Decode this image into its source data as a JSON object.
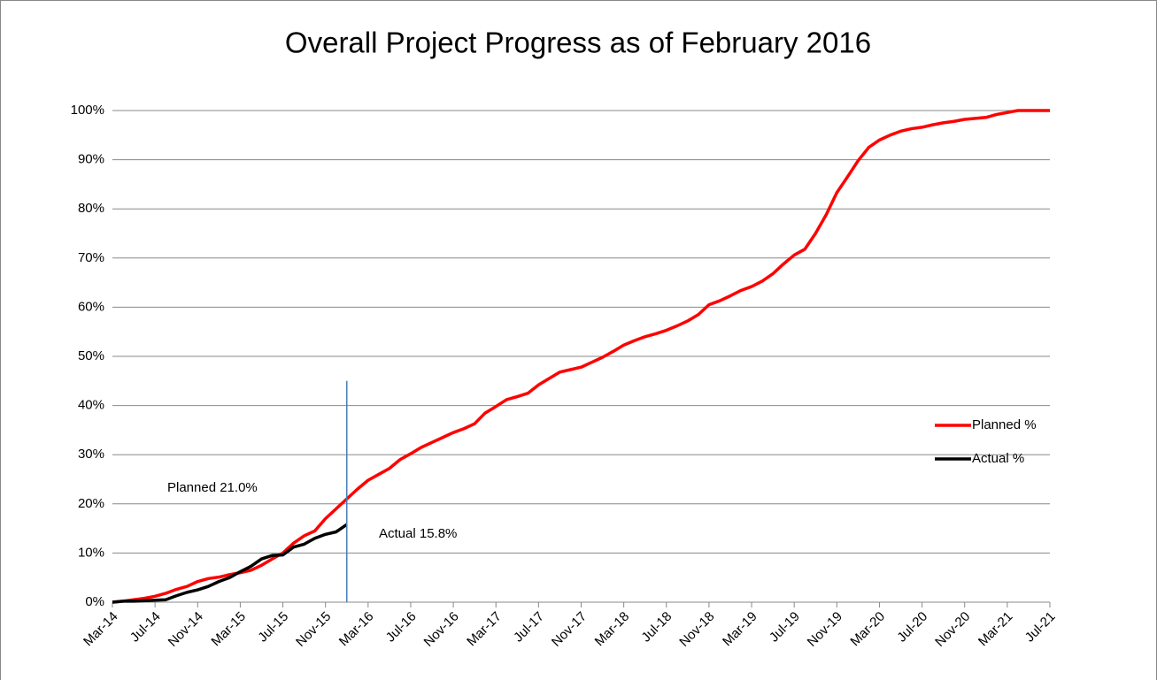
{
  "chart_data": {
    "type": "line",
    "title": "Overall Project Progress as of February 2016",
    "categories": [
      "Mar-14",
      null,
      null,
      null,
      "Jul-14",
      null,
      null,
      null,
      "Nov-14",
      null,
      null,
      null,
      "Mar-15",
      null,
      null,
      null,
      "Jul-15",
      null,
      null,
      null,
      "Nov-15",
      null,
      null,
      null,
      "Mar-16",
      null,
      null,
      null,
      "Jul-16",
      null,
      null,
      null,
      "Nov-16",
      null,
      null,
      null,
      "Mar-17",
      null,
      null,
      null,
      "Jul-17",
      null,
      null,
      null,
      "Nov-17",
      null,
      null,
      null,
      "Mar-18",
      null,
      null,
      null,
      "Jul-18",
      null,
      null,
      null,
      "Nov-18",
      null,
      null,
      null,
      "Mar-19",
      null,
      null,
      null,
      "Jul-19",
      null,
      null,
      null,
      "Nov-19",
      null,
      null,
      null,
      "Mar-20",
      null,
      null,
      null,
      "Jul-20",
      null,
      null,
      null,
      "Nov-20",
      null,
      null,
      null,
      "Mar-21",
      null,
      null,
      null,
      "Jul-21"
    ],
    "series": [
      {
        "name": "Planned %",
        "color": "#ff0000",
        "values": [
          0,
          0.2,
          0.5,
          0.8,
          1.2,
          1.8,
          2.6,
          3.2,
          4.2,
          4.8,
          5.1,
          5.6,
          6.0,
          6.5,
          7.5,
          8.8,
          10.0,
          12.0,
          13.5,
          14.5,
          17.0,
          19.0,
          21.0,
          23.0,
          24.8,
          26.0,
          27.2,
          29.0,
          30.2,
          31.5,
          32.5,
          33.5,
          34.5,
          35.3,
          36.3,
          38.5,
          39.8,
          41.2,
          41.8,
          42.5,
          44.2,
          45.5,
          46.8,
          47.3,
          47.8,
          48.8,
          49.8,
          51.0,
          52.3,
          53.2,
          54.0,
          54.6,
          55.3,
          56.2,
          57.2,
          58.5,
          60.5,
          61.3,
          62.3,
          63.4,
          64.2,
          65.3,
          66.8,
          68.8,
          70.6,
          71.8,
          75.0,
          78.8,
          83.3,
          86.5,
          89.8,
          92.5,
          94.0,
          95.0,
          95.8,
          96.3,
          96.6,
          97.1,
          97.5,
          97.8,
          98.2,
          98.4,
          98.6,
          99.2,
          99.6,
          100,
          100,
          100,
          100
        ]
      },
      {
        "name": "Actual %",
        "color": "#000000",
        "values": [
          0,
          0.2,
          0.2,
          0.3,
          0.4,
          0.5,
          1.3,
          2.0,
          2.5,
          3.2,
          4.2,
          5.0,
          6.2,
          7.3,
          8.8,
          9.5,
          9.6,
          11.2,
          11.8,
          13.0,
          13.8,
          14.3,
          15.8,
          null,
          null,
          null,
          null,
          null,
          null,
          null,
          null,
          null,
          null,
          null,
          null,
          null,
          null,
          null,
          null,
          null,
          null,
          null,
          null,
          null,
          null,
          null,
          null,
          null,
          null,
          null,
          null,
          null,
          null,
          null,
          null,
          null,
          null,
          null,
          null,
          null,
          null,
          null,
          null,
          null,
          null,
          null,
          null,
          null,
          null,
          null,
          null,
          null,
          null,
          null,
          null,
          null,
          null,
          null,
          null,
          null,
          null,
          null,
          null,
          null,
          null,
          null,
          null,
          null,
          null
        ]
      }
    ],
    "ylim": [
      0,
      100
    ],
    "yticks": [
      {
        "value": 0,
        "label": "0%"
      },
      {
        "value": 10,
        "label": "10%"
      },
      {
        "value": 20,
        "label": "20%"
      },
      {
        "value": 30,
        "label": "30%"
      },
      {
        "value": 40,
        "label": "40%"
      },
      {
        "value": 50,
        "label": "50%"
      },
      {
        "value": 60,
        "label": "60%"
      },
      {
        "value": 70,
        "label": "70%"
      },
      {
        "value": 80,
        "label": "80%"
      },
      {
        "value": 90,
        "label": "90%"
      },
      {
        "value": 100,
        "label": "100%"
      }
    ],
    "grid": true,
    "legend": "right",
    "annotations": [
      "Planned  21.0%",
      "Actual  15.8%"
    ]
  }
}
